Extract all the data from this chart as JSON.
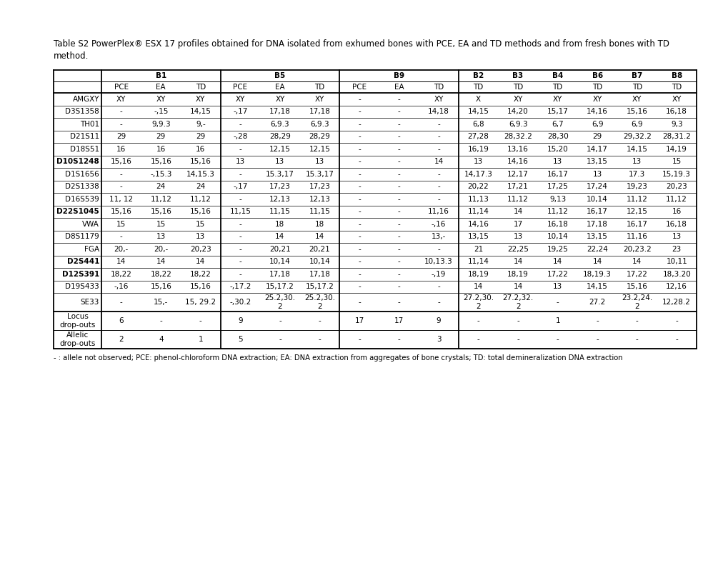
{
  "title_line1": "Table S2 PowerPlex® ESX 17 profiles obtained for DNA isolated from exhumed bones with PCE, EA and TD methods and from fresh bones with TD",
  "title_line2": "method.",
  "title_fontsize": 8.5,
  "footnote": "- : allele not observed; PCE: phenol-chloroform DNA extraction; EA: DNA extraction from aggregates of bone crystals; TD: total demineralization DNA extraction",
  "col_groups": [
    {
      "label": "B1",
      "subcols": [
        "PCE",
        "EA",
        "TD"
      ],
      "bold": false
    },
    {
      "label": "B5",
      "subcols": [
        "PCE",
        "EA",
        "TD"
      ],
      "bold": false
    },
    {
      "label": "B9",
      "subcols": [
        "PCE",
        "EA",
        "TD"
      ],
      "bold": false
    },
    {
      "label": "B2",
      "subcols": [
        "TD"
      ],
      "bold": true
    },
    {
      "label": "B3",
      "subcols": [
        "TD"
      ],
      "bold": true
    },
    {
      "label": "B4",
      "subcols": [
        "TD"
      ],
      "bold": true
    },
    {
      "label": "B6",
      "subcols": [
        "TD"
      ],
      "bold": true
    },
    {
      "label": "B7",
      "subcols": [
        "TD"
      ],
      "bold": true
    },
    {
      "label": "B8",
      "subcols": [
        "TD"
      ],
      "bold": true
    }
  ],
  "row_labels": [
    "AMGXY",
    "D3S1358",
    "TH01",
    "D21S11",
    "D18S51",
    "D10S1248",
    "D1S1656",
    "D2S1338",
    "D16S539",
    "D22S1045",
    "VWA",
    "D8S1179",
    "FGA",
    "D2S441",
    "D12S391",
    "D19S433",
    "SE33"
  ],
  "row_bold": [
    false,
    false,
    false,
    false,
    false,
    true,
    false,
    false,
    false,
    true,
    false,
    false,
    false,
    true,
    true,
    false,
    false
  ],
  "data": [
    [
      "XY",
      "XY",
      "XY",
      "XY",
      "XY",
      "XY",
      "-",
      "-",
      "XY",
      "X",
      "XY",
      "XY",
      "XY",
      "XY",
      "XY"
    ],
    [
      "-",
      "-,15",
      "14,15",
      "-,17",
      "17,18",
      "17,18",
      "-",
      "-",
      "14,18",
      "14,15",
      "14,20",
      "15,17",
      "14,16",
      "15,16",
      "16,18"
    ],
    [
      "-",
      "9,9.3",
      "9,-",
      "-",
      "6,9.3",
      "6,9.3",
      "-",
      "-",
      "-",
      "6,8",
      "6,9.3",
      "6,7",
      "6,9",
      "6,9",
      "9,3"
    ],
    [
      "29",
      "29",
      "29",
      "-,28",
      "28,29",
      "28,29",
      "-",
      "-",
      "-",
      "27,28",
      "28,32.2",
      "28,30",
      "29",
      "29,32.2",
      "28,31.2"
    ],
    [
      "16",
      "16",
      "16",
      "-",
      "12,15",
      "12,15",
      "-",
      "-",
      "-",
      "16,19",
      "13,16",
      "15,20",
      "14,17",
      "14,15",
      "14,19"
    ],
    [
      "15,16",
      "15,16",
      "15,16",
      "13",
      "13",
      "13",
      "-",
      "-",
      "14",
      "13",
      "14,16",
      "13",
      "13,15",
      "13",
      "15"
    ],
    [
      "-",
      "-,15.3",
      "14,15.3",
      "-",
      "15.3,17",
      "15.3,17",
      "-",
      "-",
      "-",
      "14,17.3",
      "12,17",
      "16,17",
      "13",
      "17.3",
      "15,19.3"
    ],
    [
      "-",
      "24",
      "24",
      "-,17",
      "17,23",
      "17,23",
      "-",
      "-",
      "-",
      "20,22",
      "17,21",
      "17,25",
      "17,24",
      "19,23",
      "20,23"
    ],
    [
      "11, 12",
      "11,12",
      "11,12",
      "-",
      "12,13",
      "12,13",
      "-",
      "-",
      "-",
      "11,13",
      "11,12",
      "9,13",
      "10,14",
      "11,12",
      "11,12"
    ],
    [
      "15,16",
      "15,16",
      "15,16",
      "11,15",
      "11,15",
      "11,15",
      "-",
      "-",
      "11,16",
      "11,14",
      "14",
      "11,12",
      "16,17",
      "12,15",
      "16"
    ],
    [
      "15",
      "15",
      "15",
      "-",
      "18",
      "18",
      "-",
      "-",
      "-,16",
      "14,16",
      "17",
      "16,18",
      "17,18",
      "16,17",
      "16,18"
    ],
    [
      "-",
      "13",
      "13",
      "-",
      "14",
      "14",
      "-",
      "-",
      "13,-",
      "13,15",
      "13",
      "10,14",
      "13,15",
      "11,16",
      "13"
    ],
    [
      "20,-",
      "20,-",
      "20,23",
      "-",
      "20,21",
      "20,21",
      "-",
      "-",
      "-",
      "21",
      "22,25",
      "19,25",
      "22,24",
      "20,23.2",
      "23"
    ],
    [
      "14",
      "14",
      "14",
      "-",
      "10,14",
      "10,14",
      "-",
      "-",
      "10,13.3",
      "11,14",
      "14",
      "14",
      "14",
      "14",
      "10,11"
    ],
    [
      "18,22",
      "18,22",
      "18,22",
      "-",
      "17,18",
      "17,18",
      "-",
      "-",
      "-,19",
      "18,19",
      "18,19",
      "17,22",
      "18,19.3",
      "17,22",
      "18,3.20"
    ],
    [
      "-,16",
      "15,16",
      "15,16",
      "-,17.2",
      "15,17.2",
      "15,17.2",
      "-",
      "-",
      "-",
      "14",
      "14",
      "13",
      "14,15",
      "15,16",
      "12,16"
    ],
    [
      "-",
      "15,-",
      "15, 29.2",
      "-,30.2",
      "25.2,30.\n2",
      "25.2,30.\n2",
      "-",
      "-",
      "-",
      "27.2,30.\n2",
      "27.2,32.\n2",
      "-",
      "27.2",
      "23.2,24.\n2",
      "12,28.2"
    ]
  ],
  "footer_rows": [
    {
      "label": "Locus\ndrop-outs",
      "values": [
        "6",
        "-",
        "-",
        "9",
        "-",
        "-",
        "17",
        "17",
        "9",
        "-",
        "-",
        "1",
        "-",
        "-",
        "-"
      ]
    },
    {
      "label": "Allelic\ndrop-outs",
      "values": [
        "2",
        "4",
        "1",
        "5",
        "-",
        "-",
        "-",
        "-",
        "3",
        "-",
        "-",
        "-",
        "-",
        "-",
        "-"
      ]
    }
  ],
  "bg_color": "#ffffff",
  "text_color": "#000000"
}
